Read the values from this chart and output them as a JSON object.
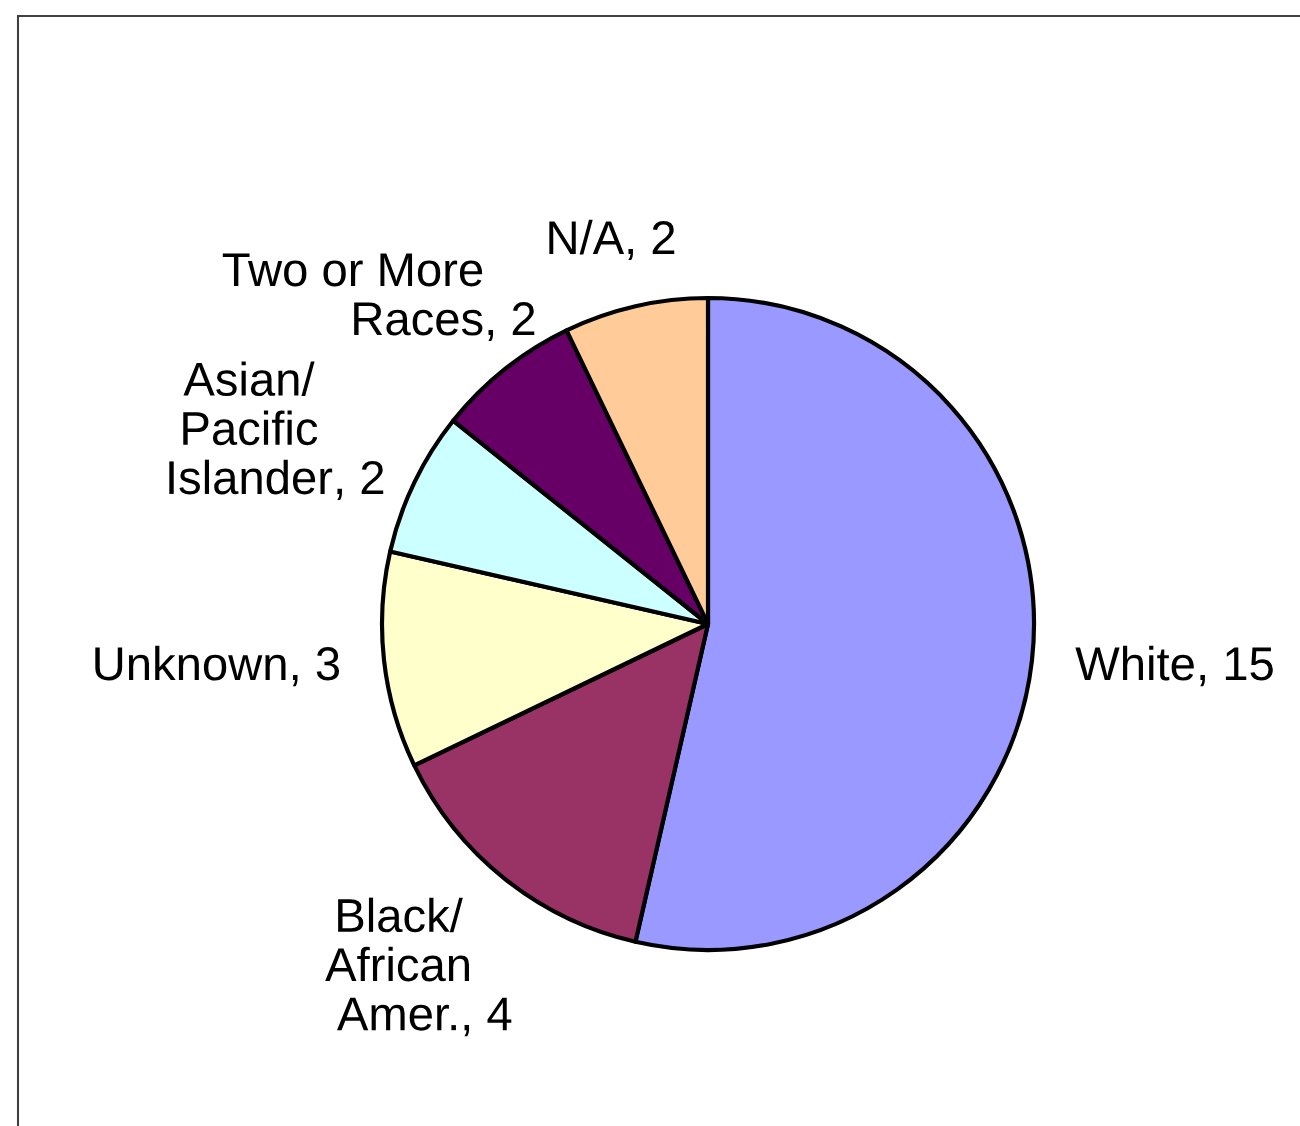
{
  "chart_data": {
    "type": "pie",
    "categories": [
      "White",
      "Black/\nAfrican\nAmer.",
      "Unknown",
      "Asian/\nPacific\nIslander",
      "Two or More\nRaces",
      "N/A"
    ],
    "values": [
      15,
      4,
      3,
      2,
      2,
      2
    ],
    "value_labels": [
      ", 15",
      ", 4",
      ", 3",
      ", 2",
      ", 2",
      ", 2"
    ],
    "colors": [
      "#9999ff",
      "#993366",
      "#ffffcc",
      "#ccffff",
      "#660066",
      "#ffcc99"
    ]
  }
}
